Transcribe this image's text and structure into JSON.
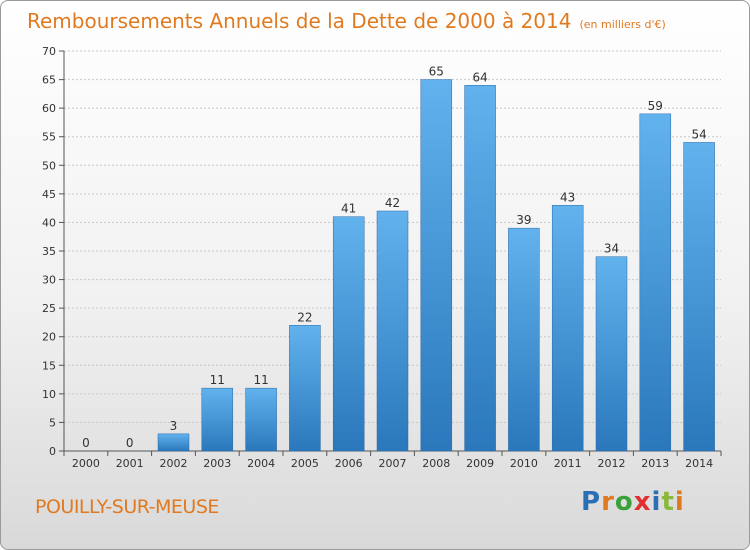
{
  "title": "Remboursements Annuels de la Dette de 2000 à 2014",
  "unit_note": "(en milliers d'€)",
  "place": "POUILLY-SUR-MEUSE",
  "logo": {
    "letters": [
      "P",
      "r",
      "o",
      "x",
      "i",
      "t",
      "i"
    ],
    "colors": [
      "#2a6fb5",
      "#e07a20",
      "#3aa03a",
      "#e03030",
      "#2a6fb5",
      "#8ab83a",
      "#e07a20"
    ]
  },
  "colors": {
    "title": "#e07a20",
    "bar_light": "#62b2ee",
    "bar_dark": "#2a78bb"
  },
  "chart_data": {
    "type": "bar",
    "categories": [
      "2000",
      "2001",
      "2002",
      "2003",
      "2004",
      "2005",
      "2006",
      "2007",
      "2008",
      "2009",
      "2010",
      "2011",
      "2012",
      "2013",
      "2014"
    ],
    "values": [
      0,
      0,
      3,
      11,
      11,
      22,
      41,
      42,
      65,
      64,
      39,
      43,
      34,
      59,
      54
    ],
    "ylim": [
      0,
      70
    ],
    "yticks": [
      0,
      5,
      10,
      15,
      20,
      25,
      30,
      35,
      40,
      45,
      50,
      55,
      60,
      65,
      70
    ],
    "grid": true,
    "legend": "none"
  }
}
